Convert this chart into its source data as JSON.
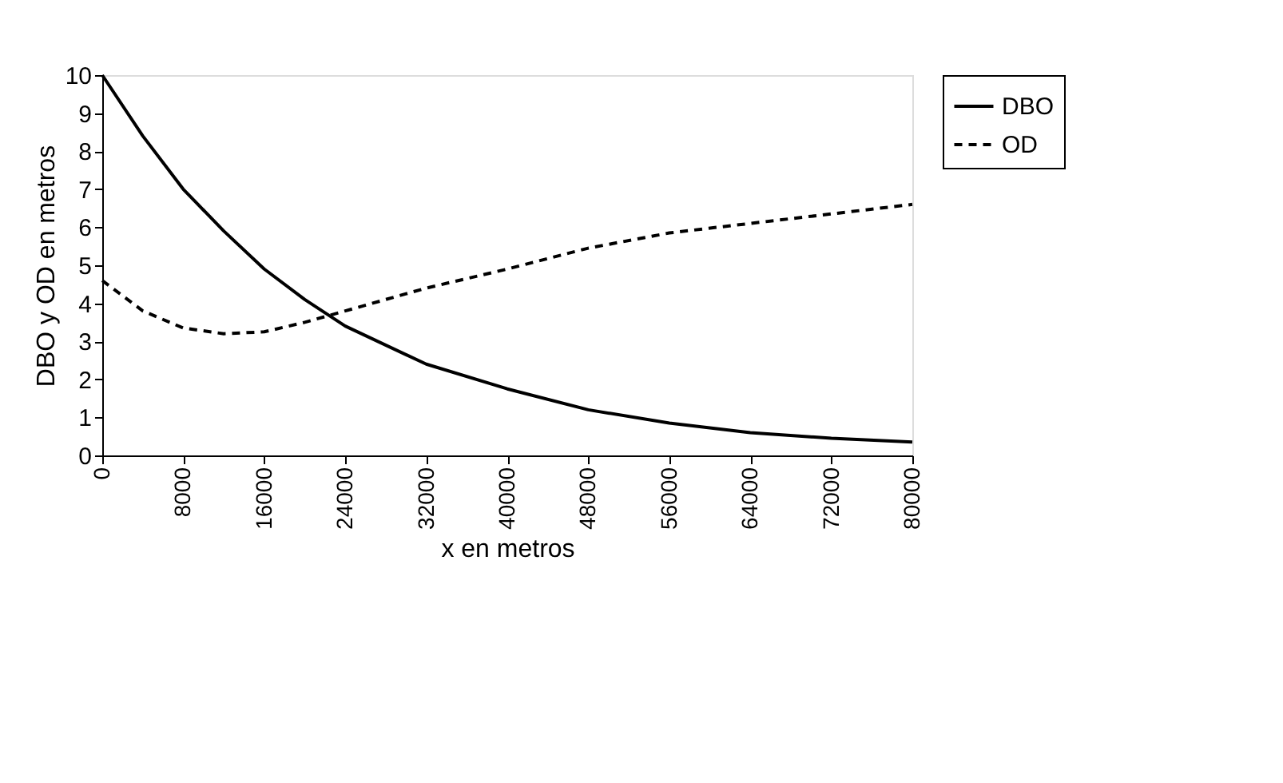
{
  "chart_data": {
    "type": "line",
    "xlabel": "x en metros",
    "ylabel": "DBO y OD en metros",
    "xlim": [
      0,
      80000
    ],
    "xticks": [
      0,
      8000,
      16000,
      24000,
      32000,
      40000,
      48000,
      56000,
      64000,
      72000,
      80000
    ],
    "ylim": [
      0,
      10
    ],
    "yticks": [
      0,
      1,
      2,
      3,
      4,
      5,
      6,
      7,
      8,
      9,
      10
    ],
    "grid": false,
    "legend": "right",
    "marker": "none",
    "series": [
      {
        "name": "DBO",
        "color": "#000000",
        "line_style": "solid",
        "x": [
          0,
          4000,
          8000,
          12000,
          16000,
          20000,
          24000,
          32000,
          40000,
          48000,
          56000,
          64000,
          72000,
          80000
        ],
        "values": [
          10,
          8.4,
          7.0,
          5.9,
          4.9,
          4.1,
          3.4,
          2.4,
          1.75,
          1.2,
          0.85,
          0.6,
          0.45,
          0.35
        ]
      },
      {
        "name": "OD",
        "color": "#000000",
        "line_style": "dashed",
        "x": [
          0,
          2000,
          4000,
          8000,
          12000,
          16000,
          20000,
          24000,
          32000,
          40000,
          48000,
          56000,
          64000,
          72000,
          80000
        ],
        "values": [
          4.6,
          4.2,
          3.8,
          3.35,
          3.2,
          3.25,
          3.5,
          3.8,
          4.4,
          4.9,
          5.45,
          5.85,
          6.1,
          6.35,
          6.6
        ]
      }
    ]
  }
}
